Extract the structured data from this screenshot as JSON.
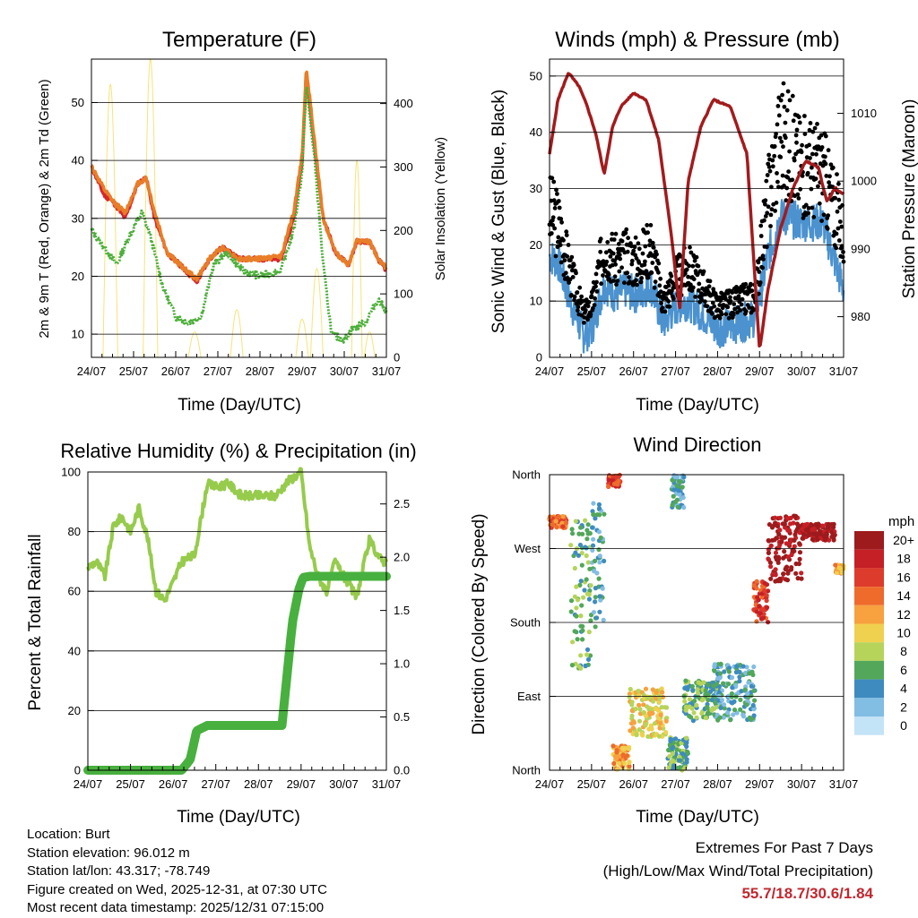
{
  "station": {
    "location_label": "Location: Burt",
    "elevation_label": "Station elevation: 96.012 m",
    "latlon_label": "Station lat/lon: 43.317; -78.749",
    "created_label": "Figure created on Wed, 2025-12-31, at 07:30 UTC",
    "recent_label": "Most recent data timestamp: 2025/12/31 07:15:00"
  },
  "extremes": {
    "title": "Extremes For Past 7 Days",
    "subtitle": "(High/Low/Max Wind/Total Precipitation)",
    "values": "55.7/18.7/30.6/1.84"
  },
  "colors": {
    "temp_9m": "#e87e28",
    "temp_2m": "#d7262b",
    "dewpoint": "#4daf3a",
    "solar": "#f7e37a",
    "gust": "#000000",
    "wind": "#4b92cf",
    "pressure": "#a31b1d",
    "rh": "#96cb4c",
    "rain": "#48b03e"
  },
  "chart_data": [
    {
      "id": "temperature",
      "type": "line",
      "title": "Temperature (F)",
      "xlabel": "Time (Day/UTC)",
      "ylabel": "2m & 9m T (Red, Orange) & 2m Td (Green)",
      "y2label": "Solar Insolation (Yellow)",
      "xticks": [
        "24/07",
        "25/07",
        "26/07",
        "27/07",
        "28/07",
        "29/07",
        "30/07",
        "31/07"
      ],
      "xlim": [
        0,
        7
      ],
      "ylim": [
        6,
        57.5
      ],
      "yticks": [
        10,
        20,
        30,
        40,
        50
      ],
      "y2lim": [
        0,
        470
      ],
      "y2ticks": [
        0,
        100,
        200,
        300,
        400
      ],
      "grid": true,
      "series": [
        {
          "name": "2m T",
          "color": "#d7262b",
          "x": [
            0,
            0.3,
            0.5,
            0.8,
            1.1,
            1.3,
            1.5,
            1.8,
            2.1,
            2.5,
            2.8,
            3.1,
            3.5,
            4.0,
            4.5,
            4.8,
            5.0,
            5.1,
            5.3,
            5.5,
            5.8,
            6.1,
            6.3,
            6.6,
            6.8,
            7.0
          ],
          "values": [
            39,
            34,
            33,
            30,
            36,
            37,
            30,
            24,
            22,
            19,
            23,
            25,
            23,
            23,
            23,
            30,
            40,
            55,
            42,
            30,
            24,
            22,
            26,
            26,
            23,
            21
          ]
        },
        {
          "name": "9m T",
          "color": "#e87e28",
          "x": [
            0,
            0.3,
            0.5,
            0.8,
            1.1,
            1.3,
            1.5,
            1.8,
            2.1,
            2.5,
            2.8,
            3.1,
            3.5,
            4.0,
            4.5,
            4.8,
            5.0,
            5.1,
            5.3,
            5.5,
            5.8,
            6.1,
            6.3,
            6.6,
            6.8,
            7.0
          ],
          "values": [
            39,
            35,
            33,
            31,
            36,
            37,
            31,
            24,
            22,
            19.5,
            23,
            25,
            23,
            23,
            23.5,
            31,
            41,
            56,
            43,
            30,
            24,
            22,
            26,
            26,
            23,
            21.5
          ]
        },
        {
          "name": "2m Td",
          "color": "#4daf3a",
          "x": [
            0,
            0.3,
            0.6,
            0.9,
            1.2,
            1.4,
            1.7,
            2.0,
            2.3,
            2.6,
            2.9,
            3.2,
            3.6,
            4.0,
            4.5,
            4.8,
            5.0,
            5.1,
            5.3,
            5.5,
            5.7,
            6.0,
            6.2,
            6.5,
            6.8,
            7.0
          ],
          "values": [
            28,
            25,
            22,
            27,
            31,
            27,
            18,
            13,
            12,
            13,
            22,
            24,
            21,
            20,
            21,
            28,
            38,
            53,
            40,
            22,
            10,
            9,
            11,
            12,
            16,
            14
          ]
        }
      ],
      "solar_bursts": [
        {
          "center": 0.45,
          "width": 0.35,
          "peak": 430
        },
        {
          "center": 1.4,
          "width": 0.35,
          "peak": 470
        },
        {
          "center": 2.45,
          "width": 0.3,
          "peak": 40
        },
        {
          "center": 3.45,
          "width": 0.3,
          "peak": 75
        },
        {
          "center": 5.0,
          "width": 0.3,
          "peak": 60
        },
        {
          "center": 5.35,
          "width": 0.3,
          "peak": 140
        },
        {
          "center": 6.3,
          "width": 0.25,
          "peak": 310
        },
        {
          "center": 6.6,
          "width": 0.25,
          "peak": 40
        }
      ]
    },
    {
      "id": "winds",
      "type": "scatter",
      "title": "Winds (mph) & Pressure (mb)",
      "xlabel": "Time (Day/UTC)",
      "ylabel": "Sonic Wind & Gust (Blue, Black)",
      "y2label": "Station Pressure (Maroon)",
      "xticks": [
        "24/07",
        "25/07",
        "26/07",
        "27/07",
        "28/07",
        "29/07",
        "30/07",
        "31/07"
      ],
      "xlim": [
        0,
        7
      ],
      "ylim": [
        0,
        53
      ],
      "yticks": [
        0,
        10,
        20,
        30,
        40,
        50
      ],
      "y2lim": [
        974,
        1018
      ],
      "y2ticks": [
        980,
        990,
        1000,
        1010
      ],
      "grid": true,
      "gust_mean": {
        "x": [
          0,
          0.2,
          0.5,
          0.8,
          1.0,
          1.3,
          1.6,
          1.8,
          2.1,
          2.4,
          2.7,
          3.0,
          3.3,
          3.6,
          4.0,
          4.5,
          4.9,
          5.2,
          5.5,
          6.0,
          6.5,
          7.0
        ],
        "values": [
          26,
          24,
          15,
          8,
          9,
          20,
          17,
          18,
          17,
          20,
          10,
          14,
          16,
          13,
          9,
          10,
          11,
          28,
          40,
          34,
          33,
          22
        ]
      },
      "wind_mean": {
        "x": [
          0,
          0.2,
          0.5,
          0.8,
          1.0,
          1.3,
          1.6,
          1.8,
          2.1,
          2.4,
          2.7,
          3.0,
          3.3,
          3.6,
          4.0,
          4.5,
          4.9,
          5.2,
          5.5,
          6.0,
          6.5,
          7.0
        ],
        "values": [
          18,
          17,
          10,
          4,
          5,
          13,
          11,
          12,
          11,
          13,
          6,
          9,
          10,
          8,
          5,
          6,
          7,
          18,
          25,
          24,
          24,
          12
        ]
      },
      "pressure": {
        "name": "Station Pressure",
        "x": [
          0,
          0.2,
          0.45,
          0.7,
          0.9,
          1.1,
          1.3,
          1.5,
          1.7,
          2.0,
          2.3,
          2.6,
          2.9,
          3.1,
          3.3,
          3.6,
          3.9,
          4.3,
          4.7,
          5.0,
          5.2,
          5.5,
          5.8,
          6.1,
          6.4,
          6.6,
          6.8,
          7.0
        ],
        "values": [
          1004,
          1012,
          1016,
          1014,
          1011,
          1007,
          1001,
          1008,
          1011,
          1013,
          1012,
          1006,
          992,
          981,
          1000,
          1008,
          1012,
          1011,
          1004,
          975,
          984,
          993,
          999,
          1003,
          1002,
          997,
          999,
          998
        ]
      }
    },
    {
      "id": "humidity",
      "type": "line",
      "title": "Relative Humidity (%) & Precipitation (in)",
      "xlabel": "Time (Day/UTC)",
      "ylabel": "Percent & Total Rainfall",
      "xticks": [
        "24/07",
        "25/07",
        "26/07",
        "27/07",
        "28/07",
        "29/07",
        "30/07",
        "31/07"
      ],
      "xlim": [
        0,
        7
      ],
      "ylim": [
        0,
        100
      ],
      "yticks": [
        0,
        20,
        40,
        60,
        80,
        100
      ],
      "y2lim": [
        0,
        2.8
      ],
      "y2ticks": [
        0.0,
        0.5,
        1.0,
        1.5,
        2.0,
        2.5
      ],
      "grid": true,
      "series": [
        {
          "name": "Relative Humidity",
          "color": "#96cb4c",
          "axis": "left",
          "x": [
            0,
            0.2,
            0.4,
            0.6,
            0.8,
            1.0,
            1.2,
            1.4,
            1.6,
            1.8,
            2.0,
            2.2,
            2.5,
            2.8,
            3.0,
            3.3,
            3.6,
            4.0,
            4.4,
            4.7,
            5.0,
            5.2,
            5.4,
            5.6,
            5.8,
            6.0,
            6.3,
            6.6,
            6.9,
            7.0
          ],
          "values": [
            68,
            70,
            65,
            82,
            85,
            80,
            88,
            78,
            60,
            57,
            63,
            70,
            72,
            96,
            95,
            96,
            92,
            92,
            92,
            97,
            100,
            75,
            65,
            60,
            70,
            65,
            58,
            77,
            70,
            70
          ]
        },
        {
          "name": "Total Rainfall",
          "color": "#48b03e",
          "axis": "right",
          "x": [
            0,
            2.2,
            2.4,
            2.55,
            2.8,
            3.5,
            4.0,
            4.55,
            4.8,
            4.95,
            5.05,
            5.2,
            6.0,
            7.0
          ],
          "values": [
            0,
            0,
            0.1,
            0.37,
            0.42,
            0.42,
            0.42,
            0.42,
            1.4,
            1.7,
            1.81,
            1.82,
            1.82,
            1.82
          ]
        }
      ]
    },
    {
      "id": "direction",
      "type": "scatter",
      "title": "Wind Direction",
      "xlabel": "Time (Day/UTC)",
      "ylabel": "Direction (Colored By Speed)",
      "xticks": [
        "24/07",
        "25/07",
        "26/07",
        "27/07",
        "28/07",
        "29/07",
        "30/07",
        "31/07"
      ],
      "xlim": [
        0,
        7
      ],
      "ylim": [
        0,
        360
      ],
      "yticks": [
        "North",
        "East",
        "South",
        "West",
        "North"
      ],
      "grid": true,
      "legend": {
        "title": "mph",
        "labels": [
          "20+",
          "18",
          "16",
          "14",
          "12",
          "10",
          "8",
          "6",
          "4",
          "2",
          "0"
        ],
        "colors": [
          "#9d1b1d",
          "#c52026",
          "#dd3b2b",
          "#ee6b2c",
          "#f7a13f",
          "#f0d04f",
          "#b6d45a",
          "#52a75a",
          "#3e8bc0",
          "#82bde3",
          "#c3e3f6"
        ]
      },
      "clusters": [
        {
          "x0": 0,
          "x1": 0.4,
          "d0": 295,
          "d1": 310,
          "speed": 14
        },
        {
          "x0": 0.5,
          "x1": 1.0,
          "d0": 120,
          "d1": 310,
          "speed": 6
        },
        {
          "x0": 1.0,
          "x1": 1.3,
          "d0": 160,
          "d1": 330,
          "speed": 4
        },
        {
          "x0": 1.4,
          "x1": 1.7,
          "d0": 345,
          "d1": 360,
          "speed": 16
        },
        {
          "x0": 1.5,
          "x1": 1.9,
          "d0": 0,
          "d1": 30,
          "speed": 12
        },
        {
          "x0": 1.9,
          "x1": 2.8,
          "d0": 40,
          "d1": 100,
          "speed": 10
        },
        {
          "x0": 2.8,
          "x1": 3.3,
          "d0": 0,
          "d1": 40,
          "speed": 6
        },
        {
          "x0": 2.9,
          "x1": 3.2,
          "d0": 320,
          "d1": 360,
          "speed": 4
        },
        {
          "x0": 3.2,
          "x1": 4.0,
          "d0": 60,
          "d1": 110,
          "speed": 6
        },
        {
          "x0": 3.9,
          "x1": 4.9,
          "d0": 60,
          "d1": 130,
          "speed": 4
        },
        {
          "x0": 4.85,
          "x1": 5.2,
          "d0": 180,
          "d1": 230,
          "speed": 16
        },
        {
          "x0": 5.2,
          "x1": 6.0,
          "d0": 230,
          "d1": 310,
          "speed": 20
        },
        {
          "x0": 6.0,
          "x1": 6.8,
          "d0": 280,
          "d1": 300,
          "speed": 20
        },
        {
          "x0": 6.8,
          "x1": 7.0,
          "d0": 240,
          "d1": 250,
          "speed": 12
        }
      ]
    }
  ]
}
